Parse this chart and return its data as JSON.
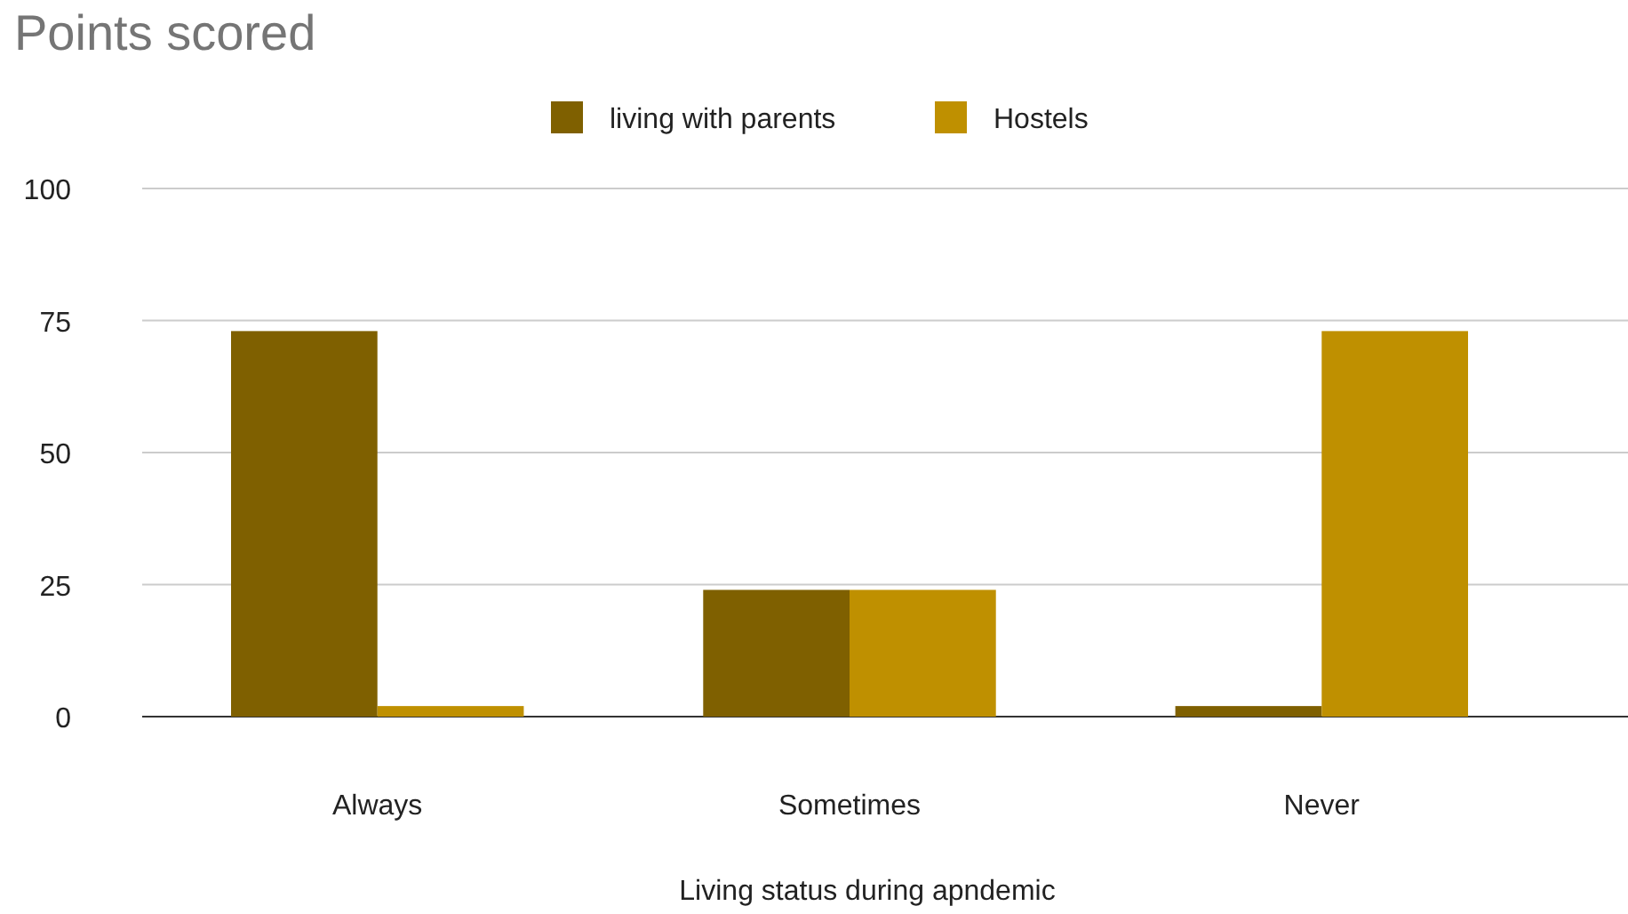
{
  "chart_data": {
    "type": "bar",
    "title": "Points scored",
    "xlabel": "Living status during apndemic",
    "categories": [
      "Always",
      "Sometimes",
      "Never"
    ],
    "series": [
      {
        "name": "living with parents",
        "color": "#7f6000",
        "values": [
          73,
          24,
          2
        ]
      },
      {
        "name": "Hostels",
        "color": "#bf9000",
        "values": [
          2,
          24,
          73
        ]
      }
    ],
    "ylim": [
      0,
      100
    ],
    "yticks": [
      0,
      25,
      50,
      75,
      100
    ],
    "grid": "y",
    "legend": "top"
  }
}
